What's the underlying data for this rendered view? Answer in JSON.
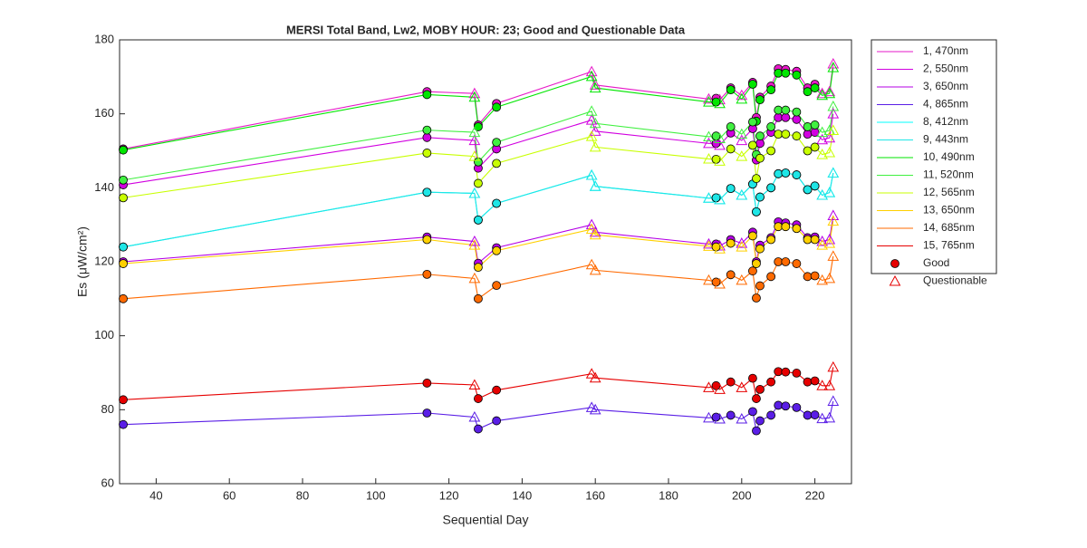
{
  "chart_data": {
    "type": "line",
    "title": "MERSI Total Band,  Lw2, MOBY HOUR: 23;  Good and Questionable Data",
    "x_label": "Sequential Day",
    "y_label": "Es (μW/cm²)",
    "x": [
      31,
      114,
      127,
      128,
      133,
      159,
      160,
      191,
      193,
      194,
      197,
      200,
      203,
      204,
      205,
      208,
      210,
      212,
      215,
      218,
      220,
      222,
      224,
      225
    ],
    "marker_kinds": [
      {
        "name": "Good",
        "shape": "circle",
        "color": "#e60000"
      },
      {
        "name": "Questionable",
        "shape": "triangle",
        "color": "#e60000"
      }
    ],
    "point_kind": [
      0,
      0,
      1,
      0,
      0,
      1,
      1,
      1,
      0,
      1,
      0,
      1,
      0,
      0,
      0,
      0,
      0,
      0,
      0,
      0,
      0,
      1,
      1,
      1
    ],
    "series": [
      {
        "name": "1, 470nm",
        "color": "#e619c8",
        "values": [
          150.5,
          166.0,
          165.5,
          157.0,
          162.8,
          171.4,
          167.8,
          164.0,
          164.2,
          163.8,
          167.0,
          165.0,
          168.5,
          159.0,
          164.5,
          167.5,
          172.2,
          172.0,
          171.5,
          167.0,
          168.0,
          165.5,
          166.0,
          173.5
        ]
      },
      {
        "name": "2, 550nm",
        "color": "#d100e0",
        "values": [
          140.8,
          153.6,
          152.8,
          145.3,
          150.5,
          158.3,
          155.3,
          152.0,
          152.0,
          151.5,
          154.8,
          152.8,
          156.0,
          147.5,
          152.0,
          155.0,
          159.0,
          159.0,
          158.5,
          154.5,
          155.0,
          153.0,
          153.5,
          160.0
        ]
      },
      {
        "name": "3, 650nm",
        "color": "#b400e6",
        "values": [
          120.0,
          126.7,
          125.5,
          119.6,
          123.8,
          130.0,
          128.0,
          124.8,
          124.8,
          124.3,
          126.0,
          125.0,
          128.0,
          120.0,
          124.5,
          126.5,
          130.8,
          130.5,
          130.0,
          126.5,
          126.7,
          125.5,
          126.0,
          132.5
        ]
      },
      {
        "name": "4, 865nm",
        "color": "#5a1ee6",
        "values": [
          76.0,
          79.1,
          78.0,
          74.8,
          77.0,
          80.6,
          80.0,
          77.8,
          78.0,
          77.5,
          78.5,
          77.5,
          79.5,
          74.3,
          77.0,
          78.5,
          81.2,
          81.0,
          80.6,
          78.5,
          78.6,
          77.6,
          77.8,
          82.3
        ]
      },
      {
        "name": "8, 412nm",
        "color": "#00ffff",
        "values": [
          124.0,
          138.8,
          138.5,
          131.3,
          135.8,
          143.4,
          140.4,
          137.2,
          137.3,
          136.8,
          139.8,
          138.0,
          141.0,
          133.5,
          137.5,
          140.0,
          143.8,
          144.0,
          143.5,
          139.5,
          140.5,
          138.0,
          138.7,
          144.0
        ]
      },
      {
        "name": "9, 443nm",
        "color": "#1ee6e6",
        "values": [
          124.0,
          138.8,
          138.5,
          131.3,
          135.8,
          143.4,
          140.4,
          137.2,
          137.3,
          136.8,
          139.8,
          138.0,
          141.0,
          133.5,
          137.5,
          140.0,
          143.8,
          144.0,
          143.5,
          139.5,
          140.5,
          138.0,
          138.7,
          144.0
        ]
      },
      {
        "name": "10, 490nm",
        "color": "#00e600",
        "values": [
          150.2,
          165.2,
          164.5,
          156.5,
          161.8,
          170.1,
          167.0,
          163.2,
          163.2,
          162.8,
          166.5,
          164.0,
          168.0,
          158.0,
          163.8,
          166.5,
          171.0,
          171.0,
          170.5,
          166.0,
          167.0,
          165.0,
          165.5,
          172.5
        ]
      },
      {
        "name": "11, 520nm",
        "color": "#40f040",
        "values": [
          142.1,
          155.6,
          155.0,
          147.0,
          152.3,
          160.7,
          157.4,
          153.8,
          154.0,
          153.3,
          156.5,
          154.5,
          157.8,
          149.0,
          154.0,
          156.5,
          161.0,
          161.0,
          160.5,
          156.5,
          157.0,
          155.0,
          155.5,
          162.0
        ]
      },
      {
        "name": "12, 565nm",
        "color": "#c8ff00",
        "values": [
          137.3,
          149.4,
          148.5,
          141.2,
          146.6,
          153.9,
          151.0,
          147.8,
          147.7,
          147.2,
          150.5,
          148.5,
          151.5,
          142.5,
          148.0,
          150.0,
          154.5,
          154.5,
          154.0,
          150.0,
          151.0,
          149.0,
          149.5,
          155.5
        ]
      },
      {
        "name": "13, 650nm",
        "color": "#ffd000",
        "values": [
          119.5,
          126.0,
          124.5,
          118.5,
          123.0,
          128.8,
          127.3,
          124.2,
          124.0,
          123.5,
          125.0,
          124.0,
          127.0,
          119.5,
          123.5,
          126.0,
          129.5,
          129.5,
          129.0,
          126.0,
          126.0,
          124.5,
          125.0,
          131.0
        ]
      },
      {
        "name": "14, 685nm",
        "color": "#ff6a00",
        "values": [
          110.0,
          116.6,
          115.5,
          110.0,
          113.6,
          119.2,
          117.7,
          115.0,
          114.5,
          114.0,
          116.5,
          115.0,
          117.5,
          110.2,
          113.5,
          116.0,
          120.0,
          120.0,
          119.5,
          116.0,
          116.2,
          115.0,
          115.5,
          121.5
        ]
      },
      {
        "name": "15, 765nm",
        "color": "#e60000",
        "values": [
          82.7,
          87.2,
          86.7,
          83.0,
          85.3,
          89.7,
          88.6,
          86.0,
          86.5,
          85.5,
          87.5,
          86.0,
          88.5,
          83.0,
          85.5,
          87.5,
          90.3,
          90.2,
          89.9,
          87.5,
          87.8,
          86.5,
          86.5,
          91.5
        ]
      }
    ],
    "xlim": [
      30,
      230
    ],
    "xticks": [
      40,
      60,
      80,
      100,
      120,
      140,
      160,
      180,
      200,
      220
    ],
    "ylim": [
      60,
      180
    ],
    "yticks": [
      60,
      80,
      100,
      120,
      140,
      160,
      180
    ],
    "legend": "outside-right"
  }
}
